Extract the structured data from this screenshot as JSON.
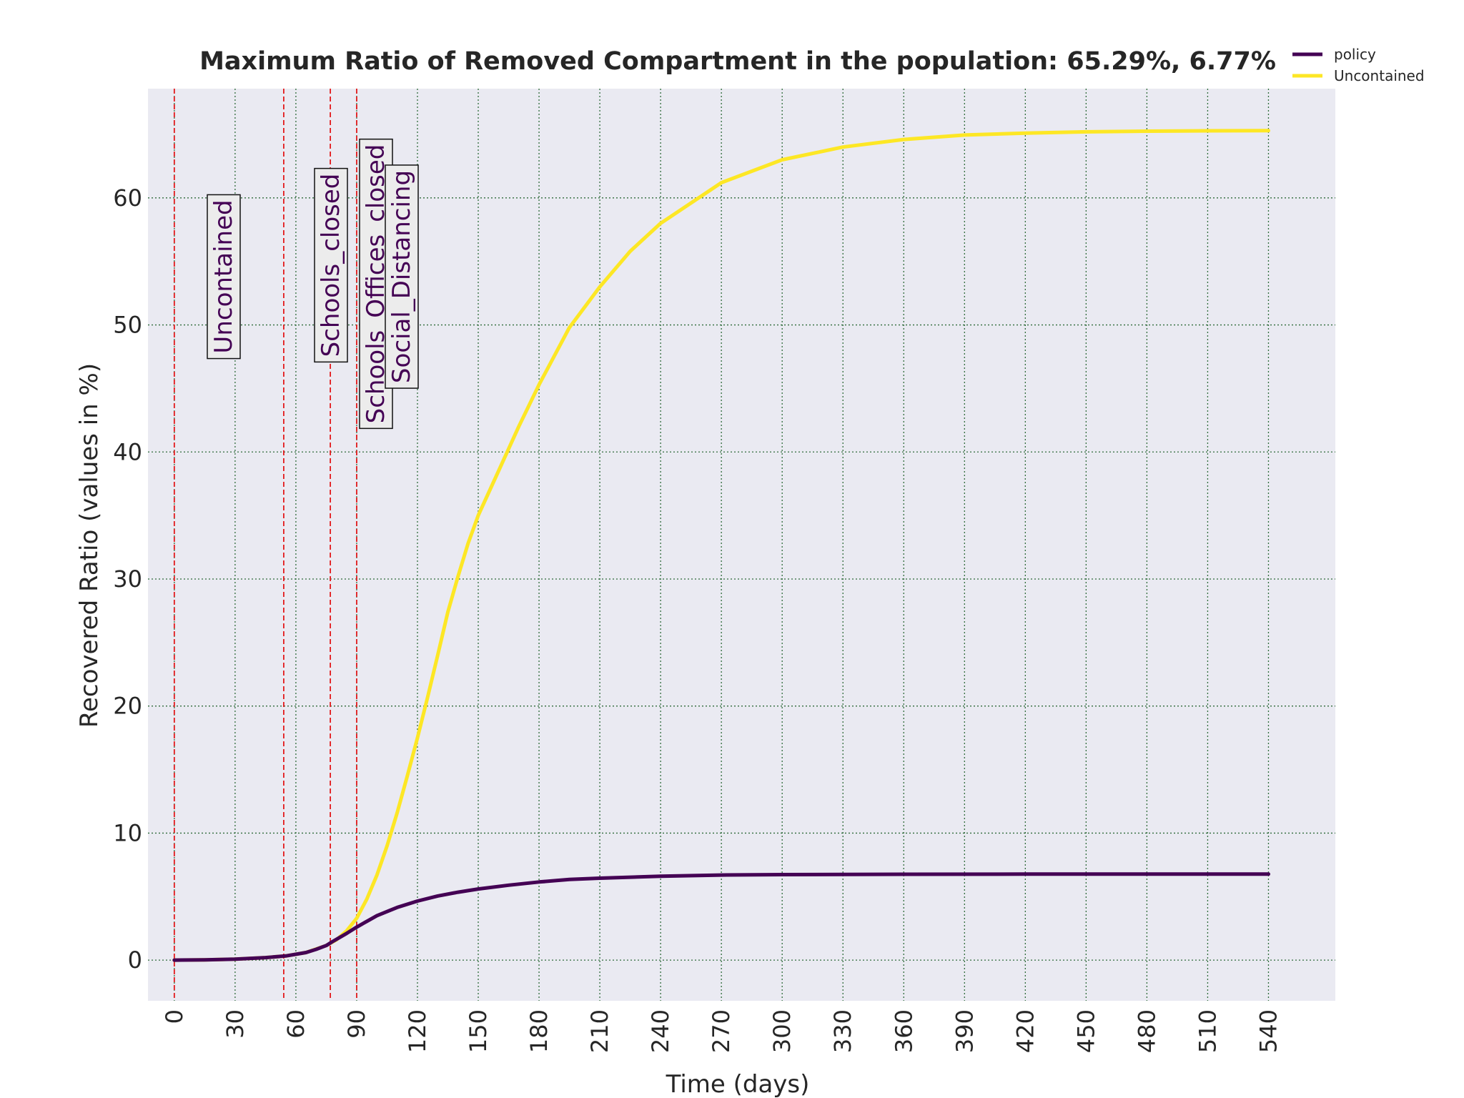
{
  "chart_data": {
    "type": "line",
    "title": "Maximum Ratio of Removed Compartment in the population: 65.29%, 6.77%",
    "xlabel": "Time (days)",
    "ylabel": "Recovered Ratio (values in %)",
    "xlim": [
      -13,
      573
    ],
    "ylim": [
      -3.2,
      68.6
    ],
    "xticks": [
      0,
      30,
      60,
      90,
      120,
      150,
      180,
      210,
      240,
      270,
      300,
      330,
      360,
      390,
      420,
      450,
      480,
      510,
      540
    ],
    "yticks": [
      0,
      10,
      20,
      30,
      40,
      50,
      60
    ],
    "grid": true,
    "legend_position": "top-right",
    "background": "#eaeaf2",
    "series": [
      {
        "name": "policy",
        "color": "#440154",
        "x": [
          0,
          15,
          30,
          45,
          55,
          65,
          70,
          75,
          78,
          85,
          90,
          95,
          100,
          110,
          120,
          130,
          140,
          150,
          165,
          180,
          195,
          210,
          240,
          270,
          300,
          360,
          420,
          480,
          540
        ],
        "y": [
          0,
          0.02,
          0.08,
          0.2,
          0.33,
          0.6,
          0.85,
          1.15,
          1.45,
          2.1,
          2.6,
          3.05,
          3.5,
          4.15,
          4.65,
          5.05,
          5.35,
          5.6,
          5.9,
          6.15,
          6.35,
          6.45,
          6.6,
          6.7,
          6.73,
          6.76,
          6.77,
          6.77,
          6.77
        ]
      },
      {
        "name": "Uncontained",
        "color": "#fde725",
        "x": [
          0,
          15,
          30,
          45,
          55,
          65,
          75,
          80,
          85,
          90,
          95,
          100,
          105,
          110,
          115,
          120,
          125,
          130,
          135,
          140,
          145,
          150,
          160,
          170,
          180,
          195,
          210,
          225,
          240,
          270,
          300,
          330,
          360,
          390,
          420,
          450,
          480,
          510,
          540
        ],
        "y": [
          0,
          0.02,
          0.08,
          0.2,
          0.33,
          0.6,
          1.15,
          1.6,
          2.3,
          3.3,
          4.8,
          6.7,
          9.0,
          11.6,
          14.5,
          17.5,
          20.7,
          24.0,
          27.4,
          30.2,
          32.8,
          35.0,
          38.5,
          42.0,
          45.3,
          49.8,
          53.0,
          55.8,
          58.0,
          61.2,
          63.0,
          64.0,
          64.6,
          64.95,
          65.1,
          65.2,
          65.25,
          65.28,
          65.29
        ]
      }
    ],
    "policy_markers": [
      {
        "label": "Uncontained",
        "x": 0
      },
      {
        "label": "Schools_closed",
        "x": 54
      },
      {
        "label": "Schools_Offices_closed",
        "x": 77
      },
      {
        "label": "Social_Distancing",
        "x": 90
      }
    ]
  }
}
